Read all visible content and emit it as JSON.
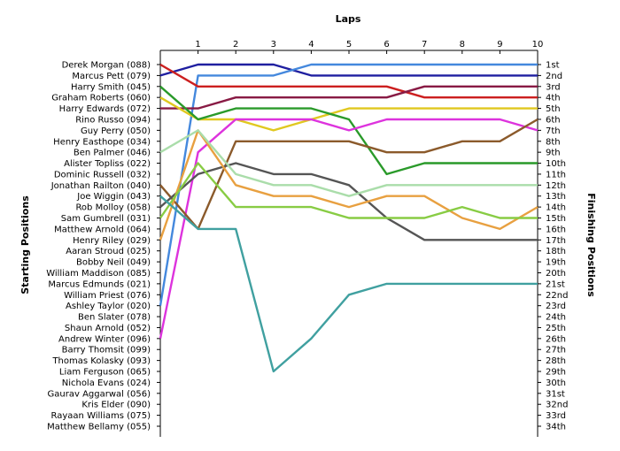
{
  "chart_data": {
    "type": "line",
    "title": "Laps",
    "ylabel_left": "Starting Positions",
    "ylabel_right": "Finishing Positions",
    "laps": [
      0,
      1,
      2,
      3,
      4,
      5,
      6,
      7,
      8,
      9,
      10
    ],
    "lap_labels": [
      "1",
      "2",
      "3",
      "4",
      "5",
      "6",
      "7",
      "8",
      "9",
      "10"
    ],
    "drivers": [
      "Derek Morgan (088)",
      "Marcus Pett (079)",
      "Harry Smith (045)",
      "Graham Roberts (060)",
      "Harry Edwards (072)",
      "Rino Russo (094)",
      "Guy Perry (050)",
      "Henry Easthope (034)",
      "Ben Palmer (046)",
      "Alister Topliss (022)",
      "Dominic Russell (032)",
      "Jonathan Railton (040)",
      "Joe Wiggin (043)",
      "Rob Molloy (058)",
      "Sam Gumbrell (031)",
      "Matthew Arnold (064)",
      "Henry Riley (029)",
      "Aaran Stroud (025)",
      "Bobby Neil (049)",
      "William Maddison (085)",
      "Marcus Edmunds (021)",
      "William Priest (076)",
      "Ashley Taylor (020)",
      "Ben Slater (078)",
      "Shaun Arnold (052)",
      "Andrew Winter (096)",
      "Barry Thomsit (099)",
      "Thomas Kolasky (093)",
      "Liam Ferguson (065)",
      "Nichola Evans (024)",
      "Gaurav Aggarwal (056)",
      "Kris Elder (090)",
      "Rayaan Williams (075)",
      "Matthew Bellamy (055)"
    ],
    "finishing_labels": [
      "1st",
      "2nd",
      "3rd",
      "4th",
      "5th",
      "6th",
      "7th",
      "8th",
      "9th",
      "10th",
      "11th",
      "12th",
      "13th",
      "14th",
      "15th",
      "16th",
      "17th",
      "18th",
      "19th",
      "20th",
      "21st",
      "22nd",
      "23rd",
      "24th",
      "25th",
      "26th",
      "27th",
      "28th",
      "29th",
      "30th",
      "31st",
      "32nd",
      "33rd",
      "34th"
    ],
    "y_range": [
      1,
      34
    ],
    "x_range": [
      0,
      10
    ],
    "grid": false,
    "legend": "none",
    "series": [
      {
        "color": "#1f1fa0",
        "positions": [
          2,
          1,
          1,
          1,
          2,
          2,
          2,
          2,
          2,
          2,
          2
        ]
      },
      {
        "color": "#4488dd",
        "positions": [
          23,
          2,
          2,
          2,
          1,
          1,
          1,
          1,
          1,
          1,
          1
        ]
      },
      {
        "color": "#cc1f1f",
        "positions": [
          1,
          3,
          3,
          3,
          3,
          3,
          3,
          4,
          4,
          4,
          4
        ]
      },
      {
        "color": "#881a44",
        "positions": [
          5,
          5,
          4,
          4,
          4,
          4,
          4,
          3,
          3,
          3,
          3
        ]
      },
      {
        "color": "#e0c81f",
        "positions": [
          4,
          6,
          6,
          7,
          6,
          5,
          5,
          5,
          5,
          5,
          5
        ]
      },
      {
        "color": "#2a9a2a",
        "positions": [
          3,
          6,
          5,
          5,
          5,
          6,
          11,
          10,
          10,
          10,
          10
        ]
      },
      {
        "color": "#dd33dd",
        "positions": [
          26,
          9,
          6,
          6,
          6,
          7,
          6,
          6,
          6,
          6,
          7
        ]
      },
      {
        "color": "#8b5a2b",
        "positions": [
          12,
          16,
          8,
          8,
          8,
          8,
          9,
          9,
          8,
          8,
          6
        ]
      },
      {
        "color": "#555555",
        "positions": [
          14,
          11,
          10,
          11,
          11,
          12,
          15,
          17,
          17,
          17,
          17
        ]
      },
      {
        "color": "#e8a040",
        "positions": [
          17,
          7,
          12,
          13,
          13,
          14,
          13,
          13,
          15,
          16,
          14
        ]
      },
      {
        "color": "#aaddaa",
        "positions": [
          9,
          7,
          11,
          12,
          12,
          13,
          12,
          12,
          12,
          12,
          12
        ]
      },
      {
        "color": "#88cc44",
        "positions": [
          15,
          10,
          14,
          14,
          14,
          15,
          15,
          15,
          14,
          15,
          15
        ]
      },
      {
        "color": "#40a0a0",
        "positions": [
          13,
          16,
          16,
          29,
          26,
          22,
          21,
          21,
          21,
          21,
          21
        ]
      }
    ]
  }
}
